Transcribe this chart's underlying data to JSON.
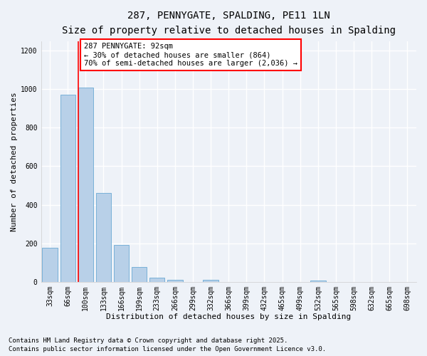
{
  "title1": "287, PENNYGATE, SPALDING, PE11 1LN",
  "title2": "Size of property relative to detached houses in Spalding",
  "xlabel": "Distribution of detached houses by size in Spalding",
  "ylabel": "Number of detached properties",
  "categories": [
    "33sqm",
    "66sqm",
    "100sqm",
    "133sqm",
    "166sqm",
    "199sqm",
    "233sqm",
    "266sqm",
    "299sqm",
    "332sqm",
    "366sqm",
    "399sqm",
    "432sqm",
    "465sqm",
    "499sqm",
    "532sqm",
    "565sqm",
    "598sqm",
    "632sqm",
    "665sqm",
    "698sqm"
  ],
  "values": [
    178,
    970,
    1010,
    460,
    190,
    75,
    20,
    10,
    0,
    10,
    0,
    0,
    0,
    0,
    0,
    5,
    0,
    0,
    0,
    0,
    0
  ],
  "bar_color": "#b8d0e8",
  "bar_edge_color": "#6aaad4",
  "vline_color": "red",
  "annotation_text": "287 PENNYGATE: 92sqm\n← 30% of detached houses are smaller (864)\n70% of semi-detached houses are larger (2,036) →",
  "annotation_box_color": "white",
  "annotation_box_edge": "red",
  "footer1": "Contains HM Land Registry data © Crown copyright and database right 2025.",
  "footer2": "Contains public sector information licensed under the Open Government Licence v3.0.",
  "bg_color": "#eef2f8",
  "grid_color": "white",
  "ylim": [
    0,
    1250
  ],
  "yticks": [
    0,
    200,
    400,
    600,
    800,
    1000,
    1200
  ],
  "title1_fontsize": 10,
  "title2_fontsize": 9,
  "xlabel_fontsize": 8,
  "ylabel_fontsize": 8,
  "tick_fontsize": 7,
  "annot_fontsize": 7.5,
  "footer_fontsize": 6.5
}
